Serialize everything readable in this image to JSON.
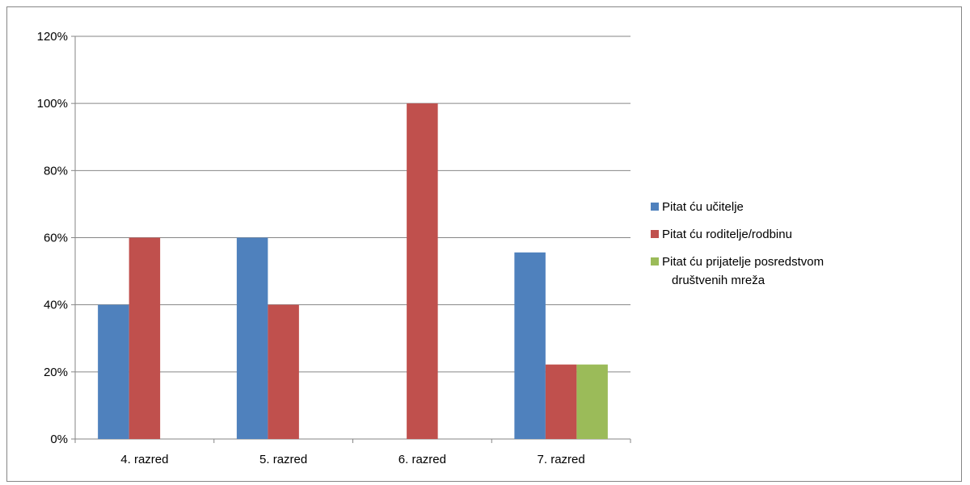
{
  "chart_data": {
    "type": "bar",
    "title": "",
    "xlabel": "",
    "ylabel": "",
    "categories": [
      "4. razred",
      "5. razred",
      "6. razred",
      "7. razred"
    ],
    "series": [
      {
        "name": "Pitat ću učitelje",
        "color": "#4F81BD",
        "values": [
          40,
          60,
          0,
          55.6
        ]
      },
      {
        "name": "Pitat ću roditelje/rodbinu",
        "color": "#C0504D",
        "values": [
          60,
          40,
          100,
          22.2
        ]
      },
      {
        "name": "Pitat ću prijatelje posredstvom društvenih mreža",
        "color": "#9BBB59",
        "values": [
          0,
          0,
          0,
          22.2
        ]
      }
    ],
    "ylim": [
      0,
      120
    ],
    "y_ticks": [
      0,
      20,
      40,
      60,
      80,
      100,
      120
    ],
    "y_tick_labels": [
      "0%",
      "20%",
      "40%",
      "60%",
      "80%",
      "100%",
      "120%"
    ],
    "grid": true,
    "legend_position": "right"
  }
}
